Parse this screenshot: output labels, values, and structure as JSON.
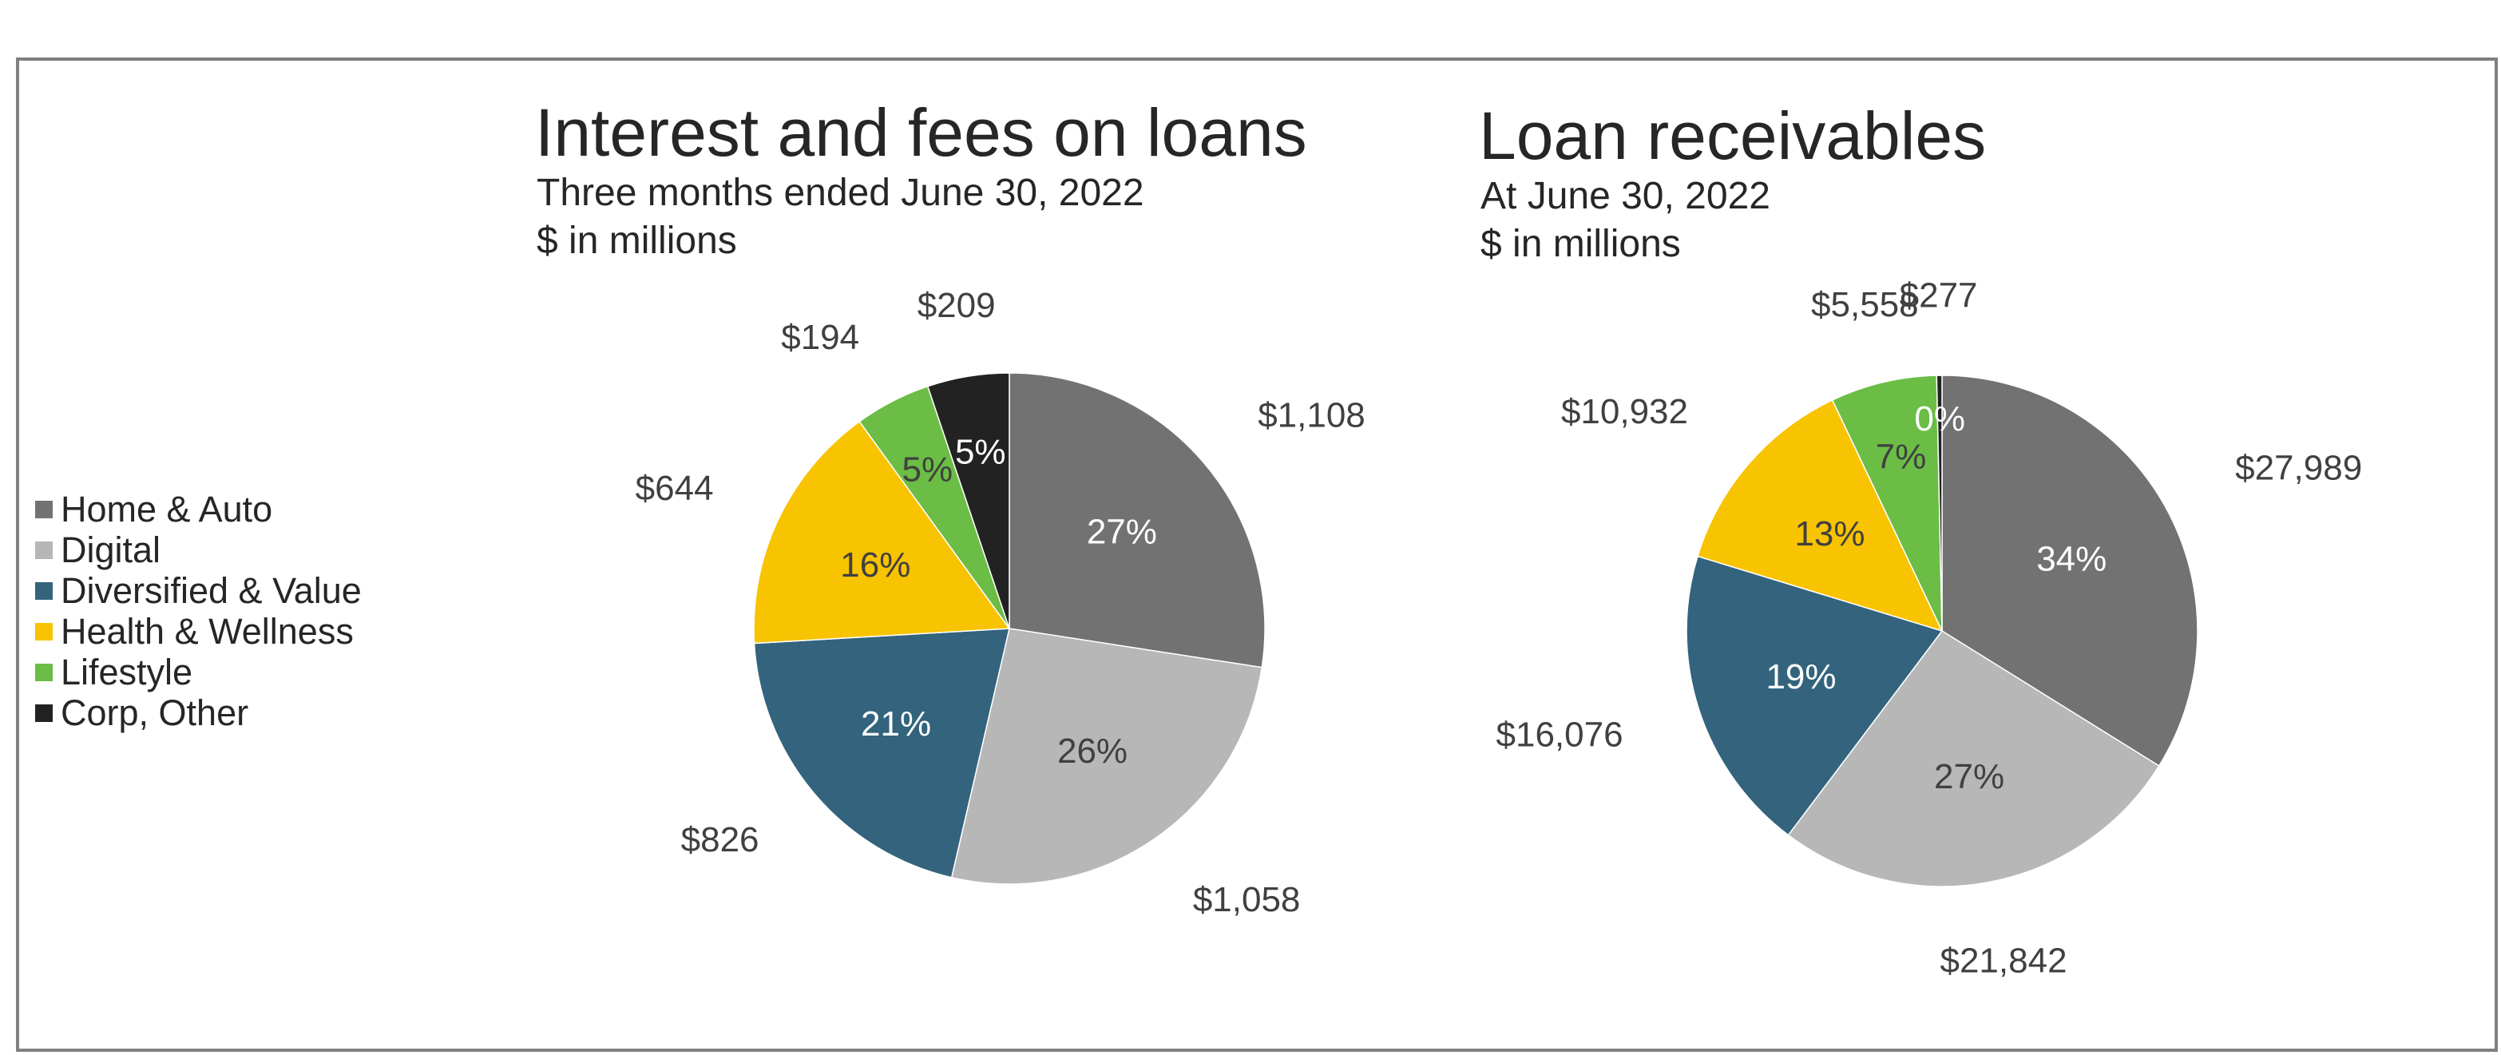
{
  "legend": [
    {
      "name": "Home & Auto",
      "color": "#727272"
    },
    {
      "name": "Digital",
      "color": "#b7b7b7"
    },
    {
      "name": "Diversified & Value",
      "color": "#33637d"
    },
    {
      "name": "Health & Wellness",
      "color": "#f8c300"
    },
    {
      "name": "Lifestyle",
      "color": "#6bbd45"
    },
    {
      "name": "Corp, Other",
      "color": "#222222"
    }
  ],
  "chart_data": [
    {
      "type": "pie",
      "title": "Interest and fees on loans",
      "subtitle": "Three months ended June 30, 2022",
      "unit": "$ in millions",
      "categories": [
        "Home & Auto",
        "Digital",
        "Diversified & Value",
        "Health & Wellness",
        "Lifestyle",
        "Corp, Other"
      ],
      "values": [
        1108,
        1058,
        826,
        644,
        194,
        209
      ],
      "value_labels": [
        "$1,108",
        "$1,058",
        "$826",
        "$644",
        "$194",
        "$209"
      ],
      "percent_labels": [
        "27%",
        "26%",
        "21%",
        "16%",
        "5%",
        "5%"
      ],
      "legend_position": "left"
    },
    {
      "type": "pie",
      "title": "Loan receivables",
      "subtitle": "At June 30, 2022",
      "unit": "$ in millions",
      "categories": [
        "Home & Auto",
        "Digital",
        "Diversified & Value",
        "Health & Wellness",
        "Lifestyle",
        "Corp, Other"
      ],
      "values": [
        27989,
        21842,
        16076,
        10932,
        5558,
        277
      ],
      "value_labels": [
        "$27,989",
        "$21,842",
        "$16,076",
        "$10,932",
        "$5,558",
        "$277"
      ],
      "percent_labels": [
        "34%",
        "27%",
        "19%",
        "13%",
        "7%",
        "0%"
      ],
      "legend_position": "left"
    }
  ]
}
